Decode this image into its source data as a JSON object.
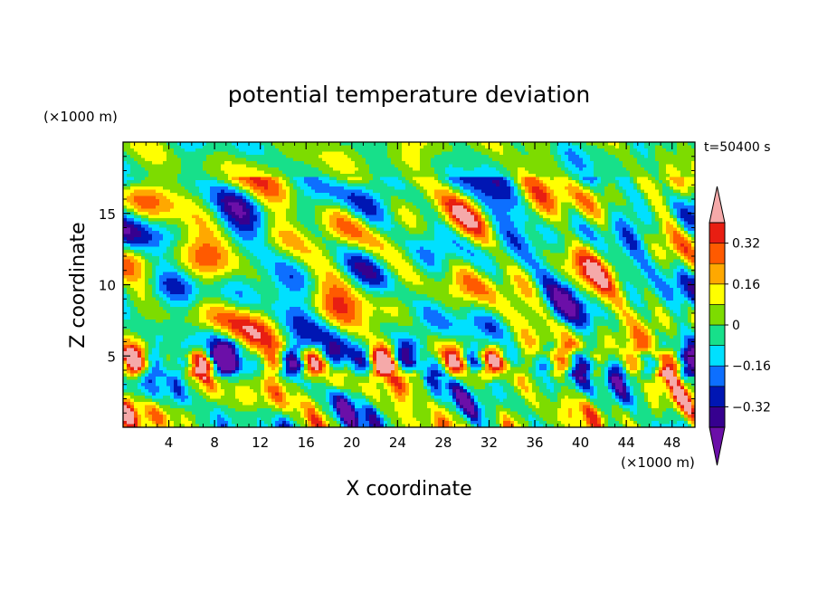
{
  "chart_data": {
    "type": "heatmap",
    "title": "potential temperature deviation",
    "time_label": "t=50400 s",
    "xlabel": "X coordinate",
    "ylabel": "Z coordinate",
    "x_unit": "(×1000 m)",
    "y_unit": "(×1000 m)",
    "xlim": [
      0,
      50
    ],
    "ylim": [
      0,
      20
    ],
    "x_ticks": [
      4,
      8,
      12,
      16,
      20,
      24,
      28,
      32,
      36,
      40,
      44,
      48
    ],
    "y_ticks": [
      5,
      10,
      15
    ],
    "colorbar": {
      "tick_labels": [
        "0.32",
        "0.16",
        "0",
        "−0.16",
        "−0.32"
      ],
      "tick_values": [
        0.32,
        0.16,
        0,
        -0.16,
        -0.32
      ],
      "levels": [
        -0.4,
        -0.32,
        -0.24,
        -0.16,
        -0.08,
        0,
        0.08,
        0.16,
        0.24,
        0.32,
        0.4
      ],
      "colors": [
        "#6b0fa8",
        "#36008f",
        "#0016b3",
        "#0d6fff",
        "#00e0ff",
        "#17e08a",
        "#7ddc00",
        "#ffff00",
        "#ffa800",
        "#ff5a00",
        "#e81e12",
        "#f5a9a9"
      ],
      "extend": "both"
    }
  }
}
